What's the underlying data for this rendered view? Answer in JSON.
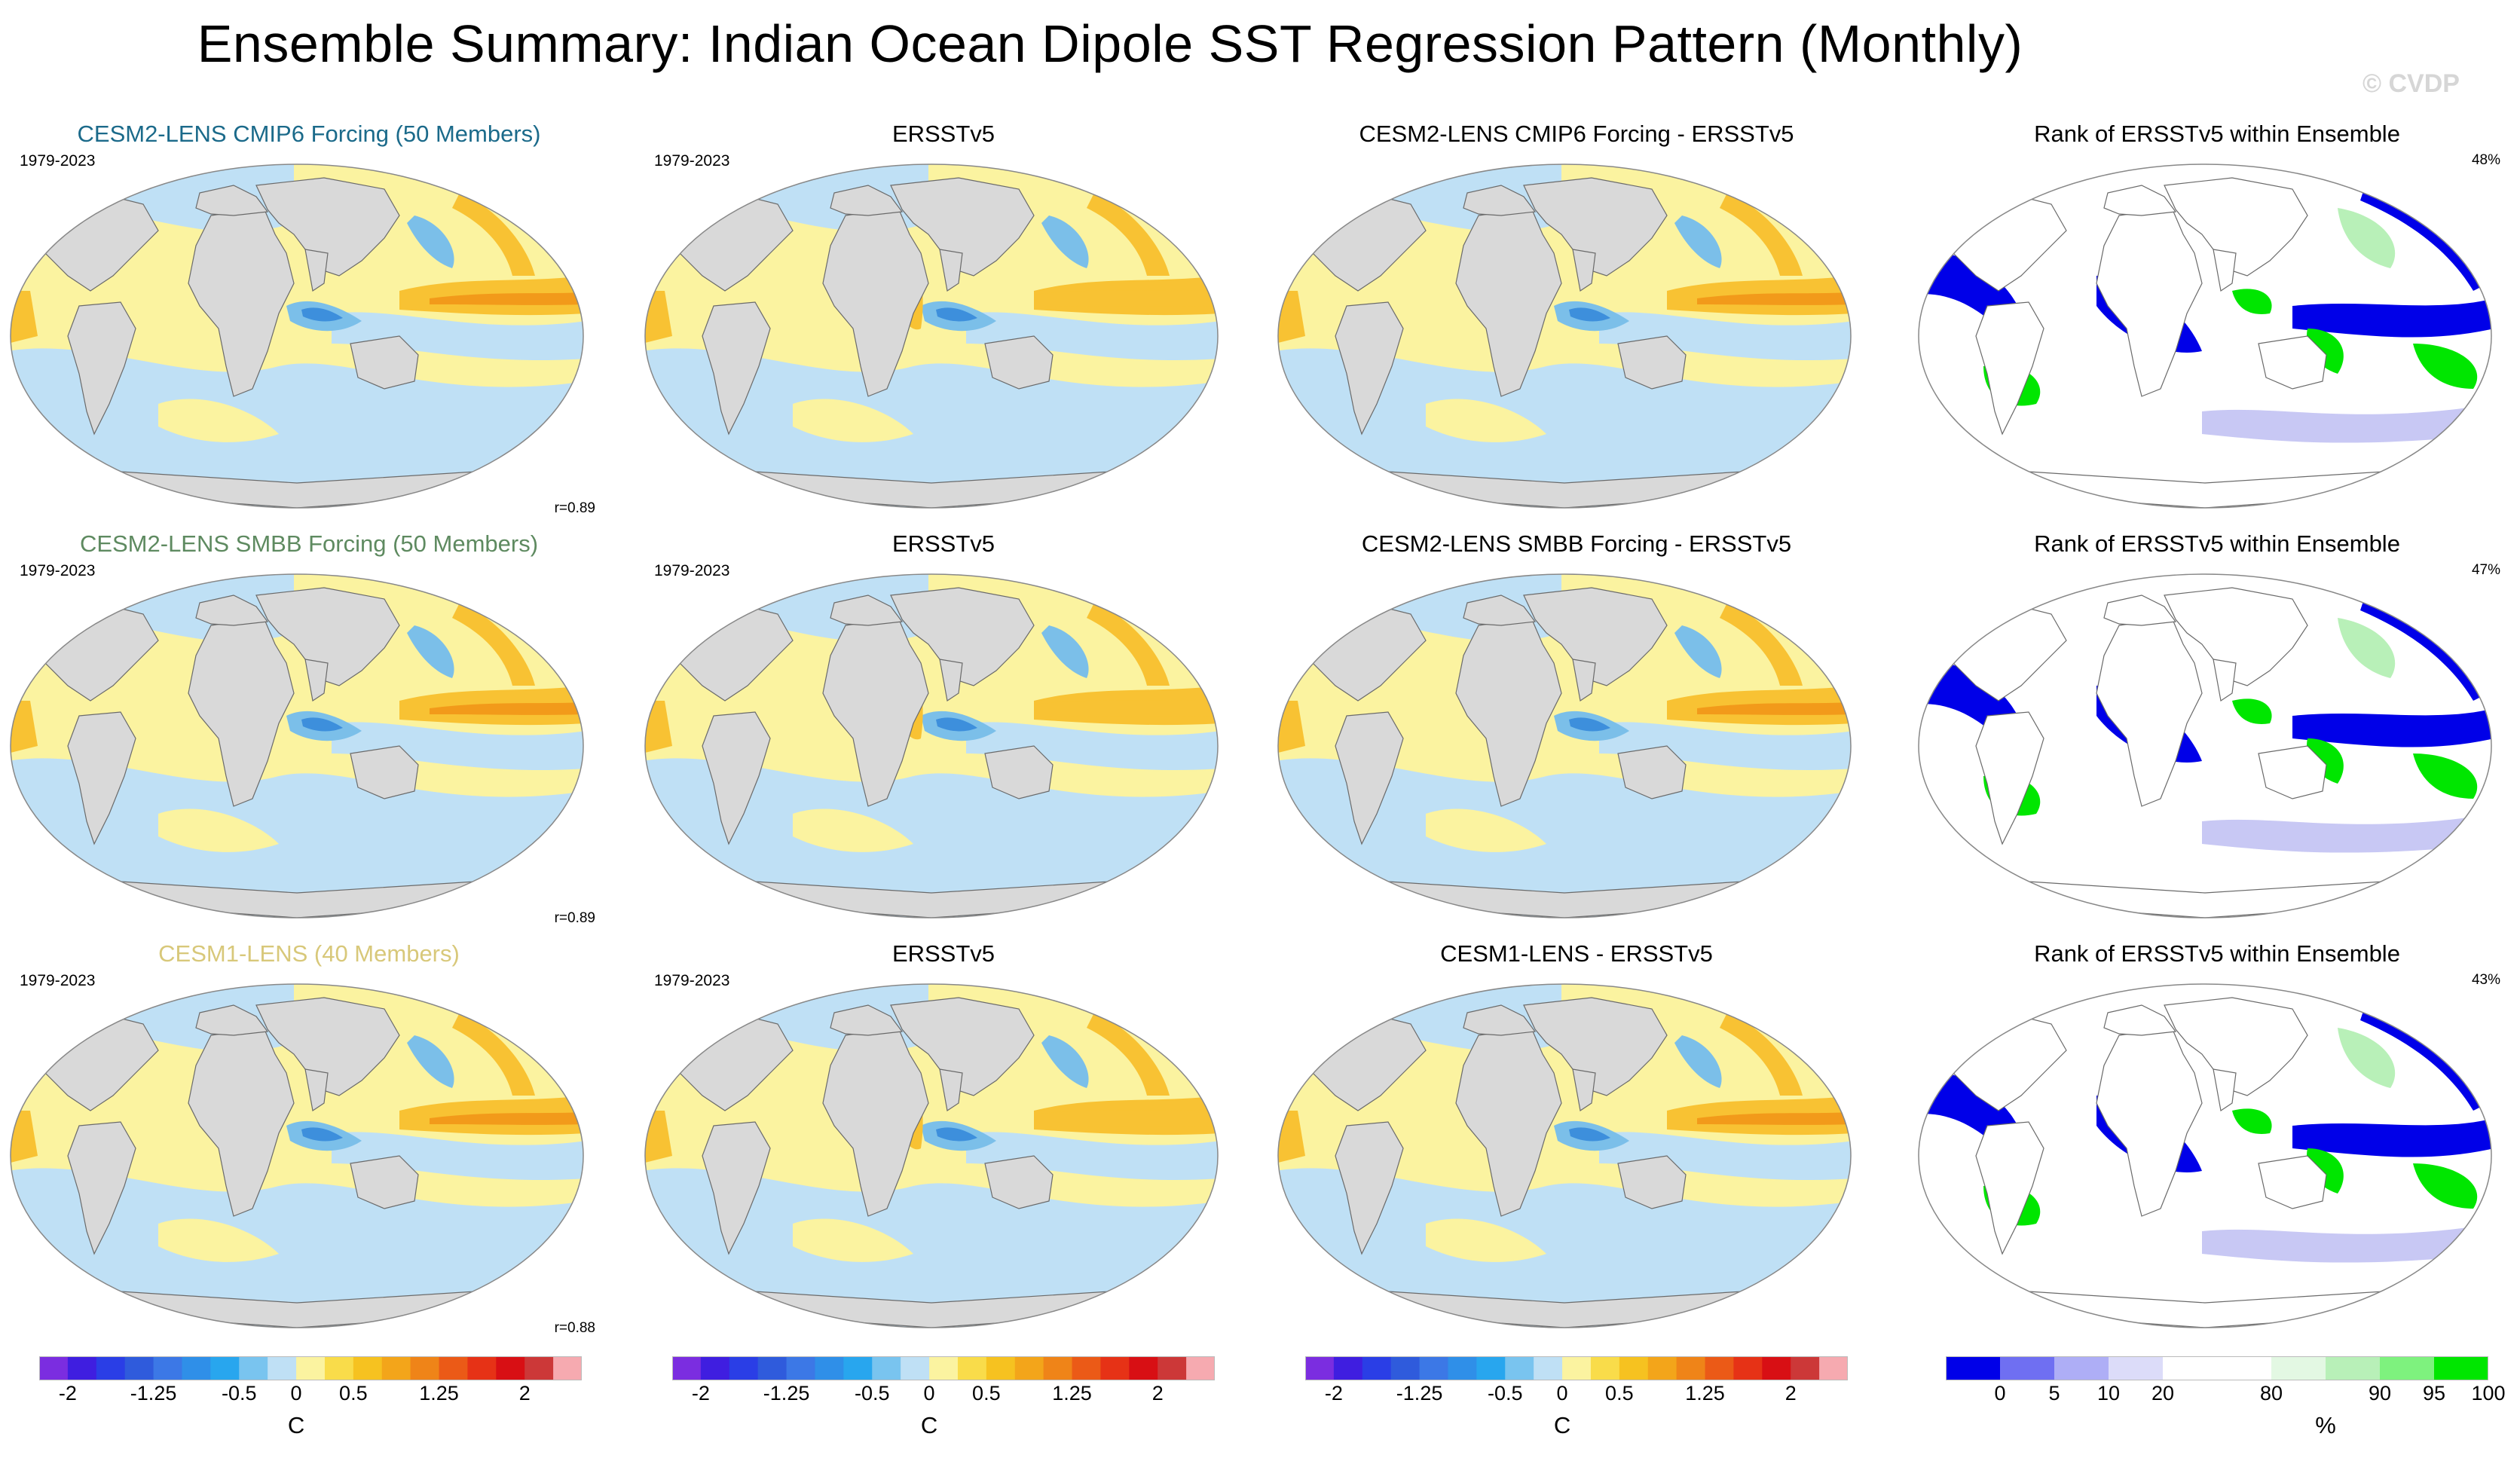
{
  "title": "Ensemble Summary: Indian Ocean Dipole SST Regression Pattern (Monthly)",
  "watermark": "© CVDP",
  "colors": {
    "land": "#d9d9d9",
    "ocean_warm_light": "#fbf3a0",
    "ocean_cool_light": "#bfe0f5",
    "warm_mid": "#f8c233",
    "warm_strong": "#f29a1a",
    "cool_mid": "#7bbfe9",
    "cool_strong": "#3d8fdc",
    "rank_low": "#0000e8",
    "rank_lowmid": "#c8c8f4",
    "rank_high": "#00e600",
    "rank_highmid": "#b8f0b8",
    "title_row1": "#1b6a8a",
    "title_row2": "#5e8a60",
    "title_row3": "#d8c87a"
  },
  "rows": [
    {
      "model": {
        "title": "CESM2-LENS CMIP6 Forcing (50 Members)",
        "period": "1979-2023",
        "corr": "r=0.89"
      },
      "obs": {
        "title": "ERSSTv5",
        "period": "1979-2023"
      },
      "diff": {
        "title": "CESM2-LENS CMIP6 Forcing - ERSSTv5"
      },
      "rank": {
        "title": "Rank of ERSSTv5 within Ensemble",
        "pct": "48%"
      }
    },
    {
      "model": {
        "title": "CESM2-LENS SMBB Forcing (50 Members)",
        "period": "1979-2023",
        "corr": "r=0.89"
      },
      "obs": {
        "title": "ERSSTv5",
        "period": "1979-2023"
      },
      "diff": {
        "title": "CESM2-LENS SMBB Forcing - ERSSTv5"
      },
      "rank": {
        "title": "Rank of ERSSTv5 within Ensemble",
        "pct": "47%"
      }
    },
    {
      "model": {
        "title": "CESM1-LENS (40 Members)",
        "period": "1979-2023",
        "corr": "r=0.88"
      },
      "obs": {
        "title": "ERSSTv5",
        "period": "1979-2023"
      },
      "diff": {
        "title": "CESM1-LENS - ERSSTv5"
      },
      "rank": {
        "title": "Rank of ERSSTv5 within Ensemble",
        "pct": "43%"
      }
    }
  ],
  "colorbars": {
    "sst": {
      "unit": "C",
      "tick_labels": [
        "-2",
        "-1.25",
        "-0.5",
        "0",
        "0.5",
        "1.25",
        "2"
      ],
      "tick_values": [
        -2,
        -1.25,
        -0.5,
        0,
        0.5,
        1.25,
        2
      ],
      "levels": [
        -2,
        -1.75,
        -1.5,
        -1.25,
        -1,
        -0.75,
        -0.5,
        -0.25,
        0,
        0.25,
        0.5,
        0.75,
        1,
        1.25,
        1.5,
        1.75,
        2
      ],
      "palette": [
        "#7b2de0",
        "#3f1ee0",
        "#2a3ee6",
        "#2f5bdc",
        "#3c78e6",
        "#2f8fe8",
        "#28a6ee",
        "#79c4ef",
        "#bfe0f5",
        "#fbf3a0",
        "#f9dc4a",
        "#f6c220",
        "#f3a51a",
        "#ef8418",
        "#eb5a17",
        "#e63216",
        "#d80f14",
        "#cc3838",
        "#f6aab0"
      ]
    },
    "rank": {
      "unit": "%",
      "tick_labels": [
        "0",
        "5",
        "10",
        "20",
        "80",
        "90",
        "95",
        "100"
      ],
      "tick_values": [
        0,
        5,
        10,
        20,
        80,
        90,
        95,
        100
      ],
      "palette": [
        "#0000e8",
        "#6f6ff2",
        "#aeaef6",
        "#dcdcf9",
        "#ffffff",
        "#ffffff",
        "#e3f8e3",
        "#b8f0b8",
        "#7ef27e",
        "#00e600"
      ]
    }
  }
}
